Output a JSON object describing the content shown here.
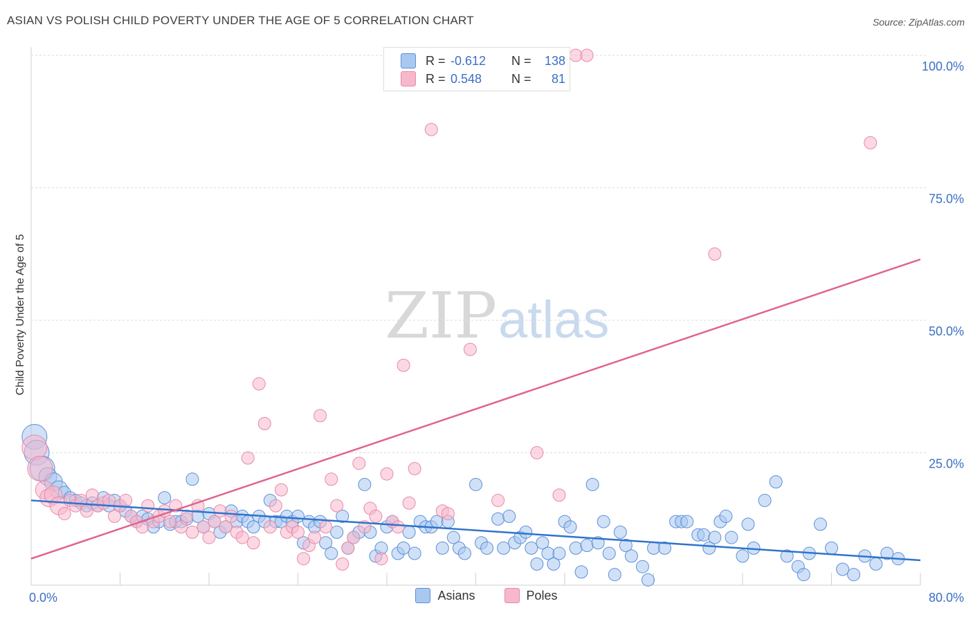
{
  "title": "ASIAN VS POLISH CHILD POVERTY UNDER THE AGE OF 5 CORRELATION CHART",
  "source": "Source: ZipAtlas.com",
  "watermark": {
    "zip": "ZIP",
    "atlas": "atlas"
  },
  "colors": {
    "asian_fill": "#a9c8f0",
    "asian_stroke": "#5b8fd6",
    "asian_line": "#2e73cc",
    "poles_fill": "#f7b8cc",
    "poles_stroke": "#e68aa8",
    "poles_line": "#e0638f",
    "tick_text": "#3a6fc4",
    "grid": "#d9d9d9"
  },
  "stats": {
    "asian": {
      "r_label": "R =",
      "r_value": "-0.612",
      "n_label": "N =",
      "n_value": "138"
    },
    "poles": {
      "r_label": "R =",
      "r_value": "0.548",
      "n_label": "N =",
      "n_value": "81"
    }
  },
  "legend": {
    "asian": "Asians",
    "poles": "Poles"
  },
  "chart_data": {
    "type": "scatter",
    "xlabel": "",
    "ylabel": "Child Poverty Under the Age of 5",
    "xlim": [
      0,
      80
    ],
    "ylim": [
      0,
      100
    ],
    "x_tick_labels": [
      {
        "value": 0,
        "label": "0.0%"
      },
      {
        "value": 80,
        "label": "80.0%"
      }
    ],
    "y_tick_labels": [
      {
        "value": 25,
        "label": "25.0%"
      },
      {
        "value": 50,
        "label": "50.0%"
      },
      {
        "value": 75,
        "label": "75.0%"
      },
      {
        "value": 100,
        "label": "100.0%"
      }
    ],
    "x_minor_ticks": [
      8,
      16,
      24,
      32,
      40,
      48,
      56,
      64,
      72
    ],
    "grid": true,
    "series": [
      {
        "name": "Asians",
        "trendline": {
          "x": [
            0,
            80
          ],
          "y": [
            16.0,
            4.7
          ]
        },
        "points": [
          [
            0.3,
            28
          ],
          [
            0.5,
            25
          ],
          [
            1.0,
            22
          ],
          [
            1.5,
            20.5
          ],
          [
            2.0,
            19.5
          ],
          [
            2.5,
            18
          ],
          [
            3.0,
            17.5
          ],
          [
            3.5,
            16.5
          ],
          [
            4.0,
            16
          ],
          [
            4.5,
            15.5
          ],
          [
            5.0,
            15
          ],
          [
            5.5,
            15.5
          ],
          [
            6.0,
            15
          ],
          [
            6.5,
            16.5
          ],
          [
            7.0,
            15
          ],
          [
            7.5,
            16
          ],
          [
            8.0,
            15
          ],
          [
            8.5,
            14
          ],
          [
            9.0,
            13
          ],
          [
            9.5,
            12
          ],
          [
            10.0,
            13
          ],
          [
            10.5,
            12.5
          ],
          [
            11.0,
            11
          ],
          [
            11.5,
            12
          ],
          [
            12.0,
            16.5
          ],
          [
            12.5,
            11.5
          ],
          [
            13.0,
            12
          ],
          [
            13.5,
            12
          ],
          [
            14.0,
            12.5
          ],
          [
            14.5,
            20
          ],
          [
            15.0,
            13
          ],
          [
            15.5,
            11
          ],
          [
            16.0,
            13.5
          ],
          [
            16.5,
            12
          ],
          [
            17.0,
            10
          ],
          [
            17.5,
            11
          ],
          [
            18.0,
            14
          ],
          [
            18.5,
            12
          ],
          [
            19.0,
            13
          ],
          [
            19.5,
            12
          ],
          [
            20.0,
            11
          ],
          [
            20.5,
            13
          ],
          [
            21.0,
            12
          ],
          [
            21.5,
            16
          ],
          [
            22.0,
            12
          ],
          [
            22.5,
            12
          ],
          [
            23.0,
            13
          ],
          [
            23.5,
            12
          ],
          [
            24.0,
            13
          ],
          [
            24.5,
            8
          ],
          [
            25.0,
            12
          ],
          [
            25.5,
            11
          ],
          [
            26.0,
            12
          ],
          [
            26.5,
            8
          ],
          [
            27.0,
            6
          ],
          [
            27.5,
            10
          ],
          [
            28.0,
            13
          ],
          [
            28.5,
            7
          ],
          [
            29.0,
            9
          ],
          [
            29.5,
            10
          ],
          [
            30.0,
            19
          ],
          [
            30.5,
            10
          ],
          [
            31.0,
            5.5
          ],
          [
            31.5,
            7
          ],
          [
            32.0,
            11
          ],
          [
            32.5,
            12
          ],
          [
            33.0,
            6
          ],
          [
            33.5,
            7
          ],
          [
            34.0,
            10
          ],
          [
            34.5,
            6
          ],
          [
            35.0,
            12
          ],
          [
            35.5,
            11
          ],
          [
            36.0,
            11
          ],
          [
            36.5,
            12
          ],
          [
            37.0,
            7
          ],
          [
            37.5,
            12
          ],
          [
            38.0,
            9
          ],
          [
            38.5,
            7
          ],
          [
            39.0,
            6
          ],
          [
            40.0,
            19
          ],
          [
            40.5,
            8
          ],
          [
            41.0,
            7
          ],
          [
            42.0,
            12.5
          ],
          [
            42.5,
            7
          ],
          [
            43.0,
            13
          ],
          [
            43.5,
            8
          ],
          [
            44.0,
            9
          ],
          [
            44.5,
            10
          ],
          [
            45.0,
            7
          ],
          [
            45.5,
            4
          ],
          [
            46.0,
            8
          ],
          [
            46.5,
            6
          ],
          [
            47.0,
            4
          ],
          [
            47.5,
            6
          ],
          [
            48.0,
            12
          ],
          [
            48.5,
            11
          ],
          [
            49.0,
            7
          ],
          [
            49.5,
            2.5
          ],
          [
            50.0,
            7.5
          ],
          [
            50.5,
            19
          ],
          [
            51.0,
            8
          ],
          [
            51.5,
            12
          ],
          [
            52.0,
            6
          ],
          [
            52.5,
            2
          ],
          [
            53.0,
            10
          ],
          [
            53.5,
            7.5
          ],
          [
            54.0,
            5.5
          ],
          [
            55.0,
            3.5
          ],
          [
            55.5,
            1
          ],
          [
            56.0,
            7
          ],
          [
            57.0,
            7
          ],
          [
            58.0,
            12
          ],
          [
            58.5,
            12
          ],
          [
            59.0,
            12
          ],
          [
            60.0,
            9.5
          ],
          [
            60.5,
            9.5
          ],
          [
            61.0,
            7
          ],
          [
            61.5,
            9
          ],
          [
            62.0,
            12
          ],
          [
            62.5,
            13
          ],
          [
            63.0,
            9
          ],
          [
            64.0,
            5.5
          ],
          [
            64.5,
            11.5
          ],
          [
            65.0,
            7
          ],
          [
            66.0,
            16
          ],
          [
            67.0,
            19.5
          ],
          [
            68.0,
            5.5
          ],
          [
            69.0,
            3.5
          ],
          [
            69.5,
            2
          ],
          [
            70.0,
            6
          ],
          [
            71.0,
            11.5
          ],
          [
            72.0,
            7
          ],
          [
            73.0,
            3
          ],
          [
            74.0,
            2
          ],
          [
            75.0,
            5.5
          ],
          [
            76.0,
            4
          ],
          [
            77.0,
            6
          ],
          [
            78.0,
            5
          ]
        ]
      },
      {
        "name": "Poles",
        "trendline": {
          "x": [
            0,
            80
          ],
          "y": [
            5.0,
            61.5
          ]
        },
        "points": [
          [
            0.3,
            26
          ],
          [
            0.8,
            22
          ],
          [
            1.2,
            18
          ],
          [
            1.6,
            16.5
          ],
          [
            2.0,
            17
          ],
          [
            2.5,
            15
          ],
          [
            3.0,
            13.5
          ],
          [
            3.5,
            16
          ],
          [
            4.0,
            15
          ],
          [
            4.5,
            16
          ],
          [
            5.0,
            14
          ],
          [
            5.5,
            17
          ],
          [
            6.0,
            15
          ],
          [
            6.5,
            15.5
          ],
          [
            7.0,
            16
          ],
          [
            7.5,
            13
          ],
          [
            8.0,
            15
          ],
          [
            8.5,
            16
          ],
          [
            9.0,
            13
          ],
          [
            9.5,
            12
          ],
          [
            10.0,
            11
          ],
          [
            10.5,
            15
          ],
          [
            11.0,
            12
          ],
          [
            11.5,
            13
          ],
          [
            12.0,
            14
          ],
          [
            12.5,
            12
          ],
          [
            13.0,
            15
          ],
          [
            13.5,
            11
          ],
          [
            14.0,
            13
          ],
          [
            14.5,
            10
          ],
          [
            15.0,
            15
          ],
          [
            15.5,
            11
          ],
          [
            16.0,
            9
          ],
          [
            16.5,
            12
          ],
          [
            17.0,
            14
          ],
          [
            17.5,
            11
          ],
          [
            18.0,
            13
          ],
          [
            18.5,
            10
          ],
          [
            19.0,
            9
          ],
          [
            19.5,
            24
          ],
          [
            20.0,
            8
          ],
          [
            20.5,
            38
          ],
          [
            21.0,
            30.5
          ],
          [
            21.5,
            11
          ],
          [
            22.0,
            15
          ],
          [
            22.5,
            18
          ],
          [
            23.0,
            10
          ],
          [
            23.5,
            11
          ],
          [
            24.0,
            10
          ],
          [
            24.5,
            5
          ],
          [
            25.0,
            7.5
          ],
          [
            25.5,
            9
          ],
          [
            26.0,
            32
          ],
          [
            26.5,
            11
          ],
          [
            27.0,
            20
          ],
          [
            27.5,
            15
          ],
          [
            28.0,
            4
          ],
          [
            28.5,
            7
          ],
          [
            29.0,
            9
          ],
          [
            29.5,
            23
          ],
          [
            30.0,
            11
          ],
          [
            30.5,
            14.5
          ],
          [
            31.0,
            13
          ],
          [
            31.5,
            5
          ],
          [
            32.0,
            21
          ],
          [
            32.5,
            12
          ],
          [
            33.0,
            11
          ],
          [
            33.5,
            41.5
          ],
          [
            34.0,
            15.5
          ],
          [
            34.5,
            22
          ],
          [
            36.0,
            86
          ],
          [
            37.0,
            14
          ],
          [
            37.5,
            13.5
          ],
          [
            39.5,
            44.5
          ],
          [
            42.0,
            16
          ],
          [
            45.5,
            25
          ],
          [
            47.5,
            17
          ],
          [
            49.0,
            100
          ],
          [
            50.0,
            100
          ],
          [
            61.5,
            62.5
          ],
          [
            75.5,
            83.5
          ]
        ]
      }
    ]
  }
}
